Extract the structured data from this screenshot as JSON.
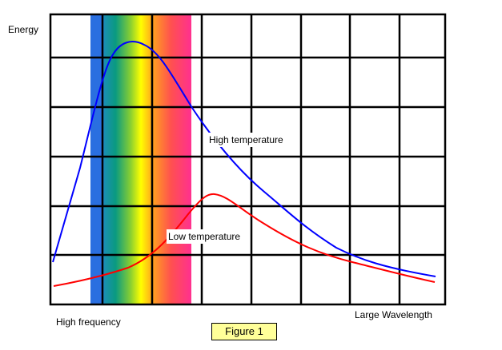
{
  "title": "Figure 1",
  "y_axis_label": "Energy",
  "x_axis_left_label": "High frequency",
  "x_axis_right_label": "Large Wavelength",
  "curves": [
    {
      "name": "High temperature",
      "color": "#0000ff"
    },
    {
      "name": "Low temperature",
      "color": "#ff0000"
    }
  ],
  "colors": {
    "grid": "#000000",
    "figure_box": "#ffff99",
    "spectrum": [
      "#2a6fe0",
      "#1a8fb0",
      "#0a9a80",
      "#8bd030",
      "#ffff00",
      "#ffa020",
      "#ff5050",
      "#ff3090"
    ]
  }
}
